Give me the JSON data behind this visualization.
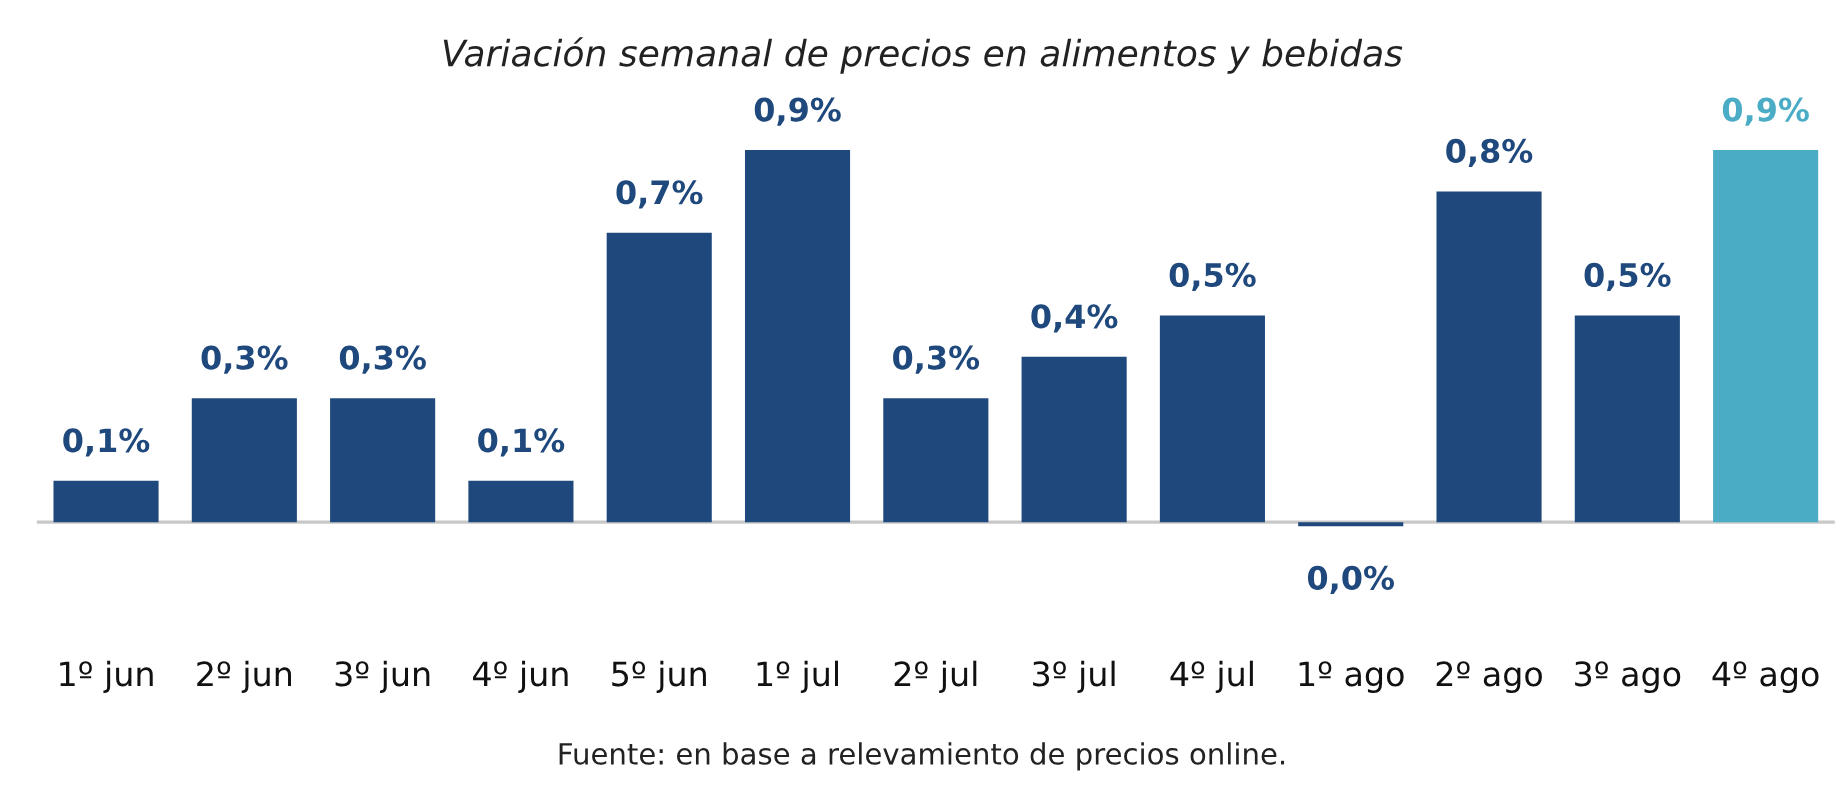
{
  "chart_data": {
    "type": "bar",
    "title": "Variación semanal de precios en alimentos y bebidas",
    "categories": [
      "1º jun",
      "2º jun",
      "3º jun",
      "4º jun",
      "5º jun",
      "1º jul",
      "2º jul",
      "3º jul",
      "4º jul",
      "1º ago",
      "2º ago",
      "3º ago",
      "4º ago"
    ],
    "values": [
      0.1,
      0.3,
      0.3,
      0.1,
      0.7,
      0.9,
      0.3,
      0.4,
      0.5,
      -0.01,
      0.8,
      0.5,
      0.9
    ],
    "value_labels": [
      "0,1%",
      "0,3%",
      "0,3%",
      "0,1%",
      "0,7%",
      "0,9%",
      "0,3%",
      "0,4%",
      "0,5%",
      "0,0%",
      "0,8%",
      "0,5%",
      "0,9%"
    ],
    "colors": [
      "#1f497d",
      "#1f497d",
      "#1f497d",
      "#1f497d",
      "#1f497d",
      "#1f497d",
      "#1f497d",
      "#1f497d",
      "#1f497d",
      "#1f497d",
      "#1f497d",
      "#1f497d",
      "#4bacc6"
    ],
    "tick_labels": "x",
    "grid": false,
    "legend": false,
    "annotations": [
      "Fuente: en base a relevamiento de precios online."
    ]
  }
}
